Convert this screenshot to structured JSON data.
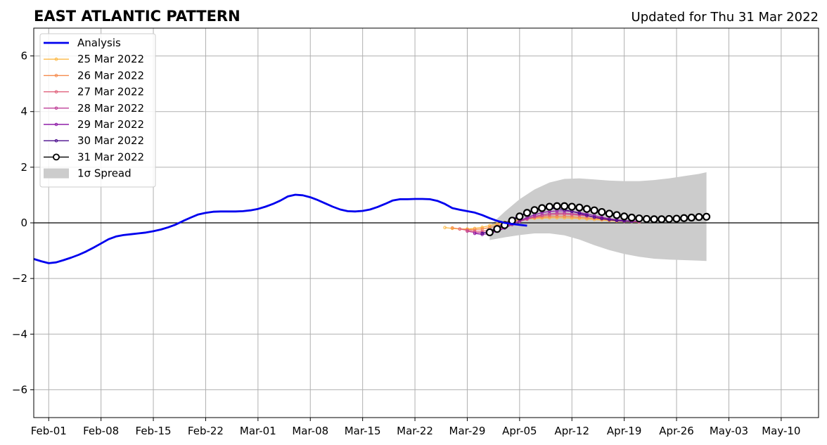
{
  "chart_data": {
    "type": "line",
    "title": "EAST ATLANTIC PATTERN",
    "subtitle": "Updated for Thu 31 Mar 2022",
    "xlabel": "",
    "ylabel": "",
    "xlim": [
      "2022-01-30",
      "2022-05-15"
    ],
    "ylim": [
      -7,
      7
    ],
    "yticks": [
      -6,
      -4,
      -2,
      0,
      2,
      4,
      6
    ],
    "ytick_labels": [
      "−6",
      "−4",
      "−2",
      "0",
      "2",
      "4",
      "6"
    ],
    "xticks": [
      "2022-02-01",
      "2022-02-08",
      "2022-02-15",
      "2022-02-22",
      "2022-03-01",
      "2022-03-08",
      "2022-03-15",
      "2022-03-22",
      "2022-03-29",
      "2022-04-05",
      "2022-04-12",
      "2022-04-19",
      "2022-04-26",
      "2022-05-03",
      "2022-05-10"
    ],
    "xtick_labels": [
      "Feb-01",
      "Feb-08",
      "Feb-15",
      "Feb-22",
      "Mar-01",
      "Mar-08",
      "Mar-15",
      "Mar-22",
      "Mar-29",
      "Apr-05",
      "Apr-12",
      "Apr-19",
      "Apr-26",
      "May-03",
      "May-10"
    ],
    "grid": true,
    "legend_position": "top-left",
    "analysis": {
      "name": "Analysis",
      "color": "#0000ee",
      "start": "2022-01-30",
      "values": [
        -1.3,
        -1.38,
        -1.45,
        -1.42,
        -1.34,
        -1.25,
        -1.15,
        -1.03,
        -0.89,
        -0.74,
        -0.59,
        -0.49,
        -0.44,
        -0.41,
        -0.38,
        -0.35,
        -0.3,
        -0.24,
        -0.16,
        -0.06,
        0.07,
        0.19,
        0.3,
        0.36,
        0.4,
        0.41,
        0.41,
        0.41,
        0.42,
        0.45,
        0.5,
        0.58,
        0.68,
        0.8,
        0.95,
        1.01,
        0.99,
        0.92,
        0.82,
        0.7,
        0.58,
        0.48,
        0.42,
        0.41,
        0.43,
        0.48,
        0.57,
        0.68,
        0.8,
        0.85,
        0.85,
        0.86,
        0.86,
        0.85,
        0.79,
        0.68,
        0.53,
        0.47,
        0.42,
        0.37,
        0.28,
        0.17,
        0.07,
        0.0,
        -0.04,
        -0.07,
        -0.1
      ]
    },
    "forecasts": [
      {
        "name": "25 Mar 2022",
        "color": "#fcb844",
        "start": "2022-03-26",
        "values": [
          -0.17,
          -0.2,
          -0.22,
          -0.22,
          -0.2,
          -0.16,
          -0.1,
          -0.04,
          0.02,
          0.07,
          0.11,
          0.14,
          0.16,
          0.17,
          0.18,
          0.18,
          0.18,
          0.17,
          0.16,
          0.14,
          0.12,
          0.1,
          0.08,
          0.06,
          0.05,
          0.04,
          0.03
        ]
      },
      {
        "name": "26 Mar 2022",
        "color": "#f58a4c",
        "start": "2022-03-27",
        "values": [
          -0.18,
          -0.22,
          -0.24,
          -0.24,
          -0.22,
          -0.17,
          -0.1,
          -0.03,
          0.04,
          0.1,
          0.15,
          0.19,
          0.21,
          0.22,
          0.23,
          0.23,
          0.22,
          0.2,
          0.18,
          0.16,
          0.13,
          0.1,
          0.08,
          0.06,
          0.05,
          0.04
        ]
      },
      {
        "name": "27 Mar 2022",
        "color": "#e0607a",
        "start": "2022-03-28",
        "values": [
          -0.22,
          -0.27,
          -0.3,
          -0.3,
          -0.27,
          -0.21,
          -0.13,
          -0.04,
          0.05,
          0.13,
          0.2,
          0.25,
          0.28,
          0.3,
          0.3,
          0.29,
          0.27,
          0.24,
          0.21,
          0.17,
          0.14,
          0.11,
          0.08,
          0.06,
          0.05
        ]
      },
      {
        "name": "28 Mar 2022",
        "color": "#bf3f98",
        "start": "2022-03-29",
        "values": [
          -0.3,
          -0.35,
          -0.36,
          -0.33,
          -0.26,
          -0.17,
          -0.06,
          0.05,
          0.15,
          0.23,
          0.29,
          0.33,
          0.35,
          0.35,
          0.33,
          0.3,
          0.26,
          0.21,
          0.17,
          0.13,
          0.1,
          0.07,
          0.05,
          0.04
        ]
      },
      {
        "name": "29 Mar 2022",
        "color": "#8f1ea8",
        "start": "2022-03-30",
        "values": [
          -0.38,
          -0.42,
          -0.38,
          -0.3,
          -0.19,
          -0.06,
          0.07,
          0.19,
          0.29,
          0.37,
          0.41,
          0.43,
          0.43,
          0.41,
          0.37,
          0.32,
          0.26,
          0.2,
          0.15,
          0.11,
          0.08,
          0.06,
          0.05
        ]
      },
      {
        "name": "30 Mar 2022",
        "color": "#4a0b8c",
        "start": "2022-03-31",
        "values": [
          -0.38,
          -0.3,
          -0.17,
          -0.02,
          0.13,
          0.27,
          0.38,
          0.47,
          0.51,
          0.52,
          0.51,
          0.47,
          0.41,
          0.34,
          0.27,
          0.2,
          0.15,
          0.11,
          0.08,
          0.06,
          0.05
        ]
      },
      {
        "name": "31 Mar 2022",
        "color": "#000000",
        "start": "2022-04-01",
        "values": [
          -0.34,
          -0.22,
          -0.08,
          0.08,
          0.23,
          0.36,
          0.46,
          0.53,
          0.58,
          0.6,
          0.6,
          0.58,
          0.55,
          0.5,
          0.45,
          0.39,
          0.33,
          0.28,
          0.23,
          0.19,
          0.16,
          0.14,
          0.13,
          0.13,
          0.14,
          0.15,
          0.17,
          0.19,
          0.21,
          0.22
        ]
      }
    ],
    "spread": {
      "name": "1σ Spread",
      "color": "#cccccc",
      "dates": [
        "2022-04-01",
        "2022-04-03",
        "2022-04-05",
        "2022-04-07",
        "2022-04-09",
        "2022-04-11",
        "2022-04-13",
        "2022-04-15",
        "2022-04-17",
        "2022-04-19",
        "2022-04-21",
        "2022-04-23",
        "2022-04-25",
        "2022-04-27",
        "2022-04-29",
        "2022-04-30"
      ],
      "upper": [
        -0.1,
        0.4,
        0.85,
        1.2,
        1.45,
        1.58,
        1.6,
        1.56,
        1.52,
        1.5,
        1.5,
        1.54,
        1.6,
        1.68,
        1.76,
        1.82
      ],
      "lower": [
        -0.62,
        -0.52,
        -0.44,
        -0.38,
        -0.38,
        -0.45,
        -0.6,
        -0.8,
        -0.98,
        -1.12,
        -1.22,
        -1.29,
        -1.32,
        -1.34,
        -1.36,
        -1.37
      ]
    }
  }
}
